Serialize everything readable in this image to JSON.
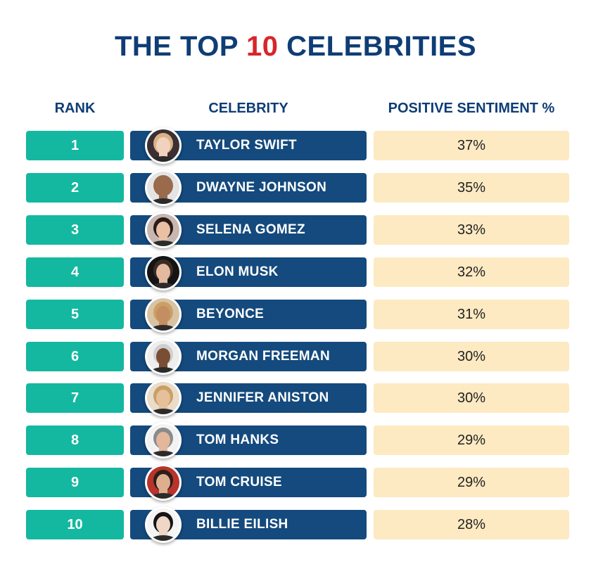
{
  "title": {
    "part1": "THE TOP ",
    "highlight": "10",
    "part2": " CELEBRITIES"
  },
  "headers": {
    "rank": "RANK",
    "celebrity": "CELEBRITY",
    "sentiment": "POSITIVE SENTIMENT %"
  },
  "colors": {
    "title": "#0f3d75",
    "highlight": "#d7262b",
    "rank": "#14b8a0",
    "name": "#144a7d",
    "sentiment": "#fdeac2"
  },
  "chart_data": {
    "type": "table",
    "columns": [
      "RANK",
      "CELEBRITY",
      "POSITIVE SENTIMENT %"
    ],
    "rows": [
      {
        "rank": "1",
        "name": "TAYLOR SWIFT",
        "sentiment": "37%",
        "value": 37,
        "avatar": {
          "skin": "#f1d2bf",
          "hair": "#d9b287",
          "bg": "#3a2f33"
        }
      },
      {
        "rank": "2",
        "name": "DWAYNE JOHNSON",
        "sentiment": "35%",
        "value": 35,
        "avatar": {
          "skin": "#9a6a4c",
          "hair": "#9a6a4c",
          "bg": "#e4e4e4"
        }
      },
      {
        "rank": "3",
        "name": "SELENA GOMEZ",
        "sentiment": "33%",
        "value": 33,
        "avatar": {
          "skin": "#e8c0a4",
          "hair": "#2a1b16",
          "bg": "#c8b7b0"
        }
      },
      {
        "rank": "4",
        "name": "ELON MUSK",
        "sentiment": "32%",
        "value": 32,
        "avatar": {
          "skin": "#e3b9a0",
          "hair": "#3b2b22",
          "bg": "#141414"
        }
      },
      {
        "rank": "5",
        "name": "BEYONCE",
        "sentiment": "31%",
        "value": 31,
        "avatar": {
          "skin": "#c58d62",
          "hair": "#caa165",
          "bg": "#d8c3a5"
        }
      },
      {
        "rank": "6",
        "name": "MORGAN FREEMAN",
        "sentiment": "30%",
        "value": 30,
        "avatar": {
          "skin": "#7a4e33",
          "hair": "#cfcfcf",
          "bg": "#eeeeee"
        }
      },
      {
        "rank": "7",
        "name": "JENNIFER ANISTON",
        "sentiment": "30%",
        "value": 30,
        "avatar": {
          "skin": "#e6bf9b",
          "hair": "#c9a064",
          "bg": "#e9dccb"
        }
      },
      {
        "rank": "8",
        "name": "TOM HANKS",
        "sentiment": "29%",
        "value": 29,
        "avatar": {
          "skin": "#e2b79c",
          "hair": "#8a8a8a",
          "bg": "#f2f2f2"
        }
      },
      {
        "rank": "9",
        "name": "TOM CRUISE",
        "sentiment": "29%",
        "value": 29,
        "avatar": {
          "skin": "#deae8f",
          "hair": "#2d1f18",
          "bg": "#b8342c"
        }
      },
      {
        "rank": "10",
        "name": "BILLIE EILISH",
        "sentiment": "28%",
        "value": 28,
        "avatar": {
          "skin": "#f0d6c6",
          "hair": "#151515",
          "bg": "#f4f4f4"
        }
      }
    ]
  }
}
